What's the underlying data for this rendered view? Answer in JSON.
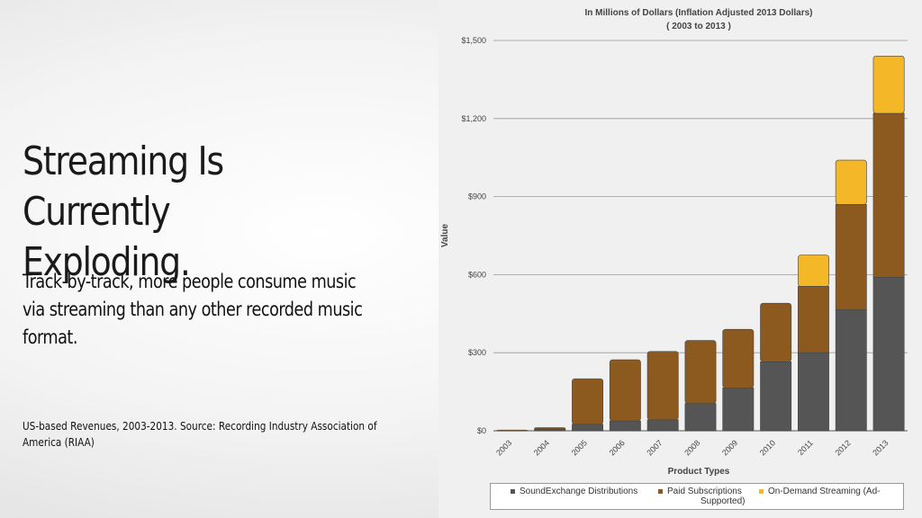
{
  "slide": {
    "title_line1": "Streaming Is Currently",
    "title_line2": "Exploding.",
    "subtitle_line1": "Track-by-track, more people consume music",
    "subtitle_line2": "via streaming  than any other recorded music",
    "subtitle_line3": "format.",
    "source_line1": "US-based Revenues, 2003-2013. Source: Recording Industry Association of",
    "source_line2": "America (RIAA)"
  },
  "chart_data": {
    "type": "bar",
    "stacked": true,
    "title": "In Millions of Dollars (Inflation Adjusted 2013 Dollars)",
    "subtitle": "( 2003 to 2013 )",
    "xlabel": "Product Types",
    "ylabel": "Value",
    "ylim": [
      0,
      1500
    ],
    "yticks": [
      0,
      300,
      600,
      900,
      1200,
      1500
    ],
    "ytick_labels": [
      "$0",
      "$300",
      "$600",
      "$900",
      "$1,200",
      "$1,500"
    ],
    "grid": true,
    "categories": [
      "2003",
      "2004",
      "2005",
      "2006",
      "2007",
      "2008",
      "2009",
      "2010",
      "2011",
      "2012",
      "2013"
    ],
    "series": [
      {
        "name": "SoundExchange Distributions",
        "color": "#555555",
        "values": [
          0,
          7,
          25,
          38,
          42,
          105,
          165,
          265,
          300,
          465,
          590
        ]
      },
      {
        "name": "Paid Subscriptions",
        "color": "#8c5a1e",
        "values": [
          3,
          5,
          175,
          235,
          263,
          242,
          225,
          225,
          255,
          405,
          630
        ]
      },
      {
        "name": "On-Demand Streaming (Ad-Supported)",
        "color": "#f4b728",
        "values": [
          0,
          0,
          0,
          0,
          0,
          0,
          0,
          0,
          120,
          170,
          220
        ]
      }
    ],
    "legend_position": "bottom",
    "legend_line2": "Supported)"
  }
}
